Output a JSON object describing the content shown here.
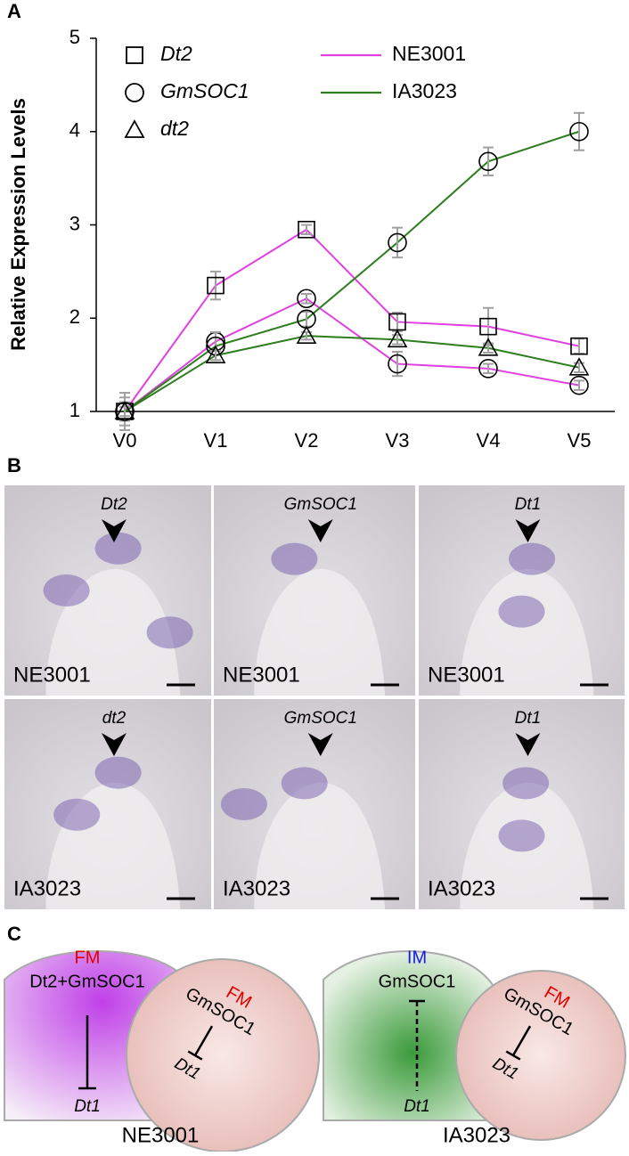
{
  "panel_labels": [
    "A",
    "B",
    "C"
  ],
  "chart_data": {
    "type": "line",
    "ylabel": "Relative Expression Levels",
    "categories": [
      "V0",
      "V1",
      "V2",
      "V3",
      "V4",
      "V5"
    ],
    "ylim": [
      1,
      5
    ],
    "yticks": [
      1,
      2,
      3,
      4,
      5
    ],
    "genes": [
      {
        "name": "Dt2",
        "marker": "square"
      },
      {
        "name": "GmSOC1",
        "marker": "circle"
      },
      {
        "name": "dt2",
        "marker": "triangle"
      }
    ],
    "genotypes": [
      {
        "name": "NE3001",
        "color": "#e040e0"
      },
      {
        "name": "IA3023",
        "color": "#2e7d1e"
      }
    ],
    "error_color": "#a0a0a0",
    "series": [
      {
        "gene": "Dt2",
        "genotype": "NE3001",
        "values": [
          1.0,
          2.35,
          2.95,
          1.96,
          1.91,
          1.7
        ],
        "errors": [
          0.15,
          0.15,
          0.05,
          0.1,
          0.2,
          0.08
        ]
      },
      {
        "gene": "GmSOC1",
        "genotype": "NE3001",
        "values": [
          1.0,
          1.75,
          2.21,
          1.51,
          1.46,
          1.28
        ],
        "errors": [
          0.2,
          0.1,
          0.05,
          0.13,
          0.05,
          0.05
        ]
      },
      {
        "gene": "GmSOC1",
        "genotype": "IA3023",
        "values": [
          1.0,
          1.7,
          1.99,
          2.81,
          3.68,
          4.0
        ],
        "errors": [
          0.1,
          0.15,
          0.08,
          0.16,
          0.15,
          0.2
        ]
      },
      {
        "gene": "dt2",
        "genotype": "IA3023",
        "values": [
          1.0,
          1.6,
          1.81,
          1.77,
          1.68,
          1.47
        ],
        "errors": [
          0.05,
          0.05,
          0.04,
          0.05,
          0.05,
          0.05
        ]
      }
    ]
  },
  "micrographs": [
    [
      {
        "gene": "Dt2",
        "genotype": "NE3001"
      },
      {
        "gene": "GmSOC1",
        "genotype": "NE3001"
      },
      {
        "gene": "Dt1",
        "genotype": "NE3001"
      }
    ],
    [
      {
        "gene": "dt2",
        "genotype": "IA3023"
      },
      {
        "gene": "GmSOC1",
        "genotype": "IA3023"
      },
      {
        "gene": "Dt1",
        "genotype": "IA3023"
      }
    ]
  ],
  "models": [
    {
      "genotype": "NE3001",
      "meristem": {
        "stage": "FM",
        "gene": "Dt2+GmSOC1",
        "target": "Dt1"
      },
      "flower": {
        "stage": "FM",
        "gene": "GmSOC1",
        "target": "Dt1"
      }
    },
    {
      "genotype": "IA3023",
      "meristem": {
        "stage": "IM",
        "gene": "GmSOC1",
        "target": "Dt1"
      },
      "flower": {
        "stage": "FM",
        "gene": "GmSOC1",
        "target": "Dt1"
      }
    }
  ]
}
